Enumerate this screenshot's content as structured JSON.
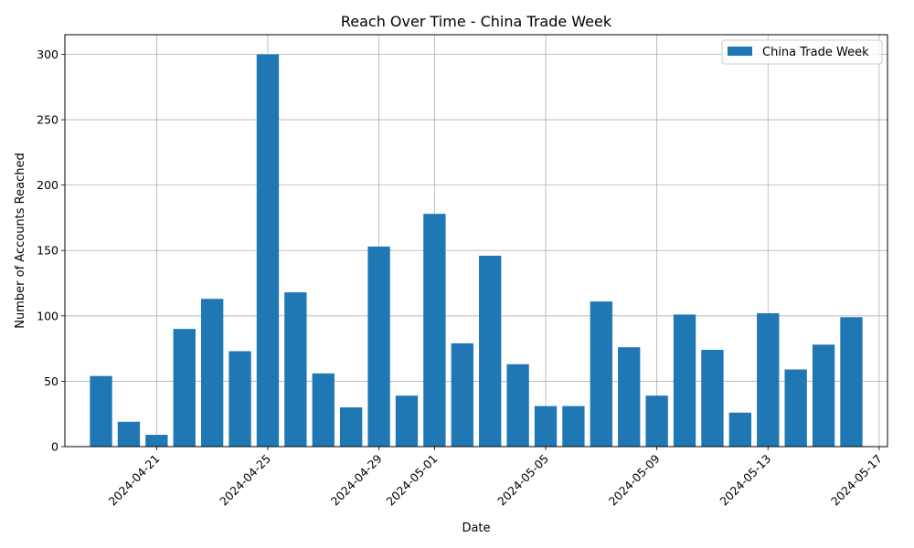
{
  "chart_data": {
    "type": "bar",
    "title": "Reach Over Time - China Trade Week",
    "xlabel": "Date",
    "ylabel": "Number of Accounts Reached",
    "ylim": [
      0,
      315
    ],
    "yticks": [
      0,
      50,
      100,
      150,
      200,
      250,
      300
    ],
    "xlim": [
      "2024-04-17T16:48",
      "2024-05-17T07:12"
    ],
    "xticks": [
      "2024-04-21",
      "2024-04-25",
      "2024-04-29",
      "2024-05-01",
      "2024-05-05",
      "2024-05-09",
      "2024-05-13",
      "2024-05-17"
    ],
    "grid": true,
    "legend_position": "top-right",
    "colors": {
      "bar": "#1f77b4"
    },
    "series": [
      {
        "name": "China Trade Week",
        "dates": [
          "2024-04-19",
          "2024-04-20",
          "2024-04-21",
          "2024-04-22",
          "2024-04-23",
          "2024-04-24",
          "2024-04-25",
          "2024-04-26",
          "2024-04-27",
          "2024-04-28",
          "2024-04-29",
          "2024-04-30",
          "2024-05-01",
          "2024-05-02",
          "2024-05-03",
          "2024-05-04",
          "2024-05-05",
          "2024-05-06",
          "2024-05-07",
          "2024-05-08",
          "2024-05-09",
          "2024-05-10",
          "2024-05-11",
          "2024-05-12",
          "2024-05-13",
          "2024-05-14",
          "2024-05-15",
          "2024-05-16"
        ],
        "values": [
          54,
          19,
          9,
          90,
          113,
          73,
          300,
          118,
          56,
          30,
          153,
          39,
          178,
          79,
          146,
          63,
          31,
          31,
          111,
          76,
          39,
          101,
          74,
          26,
          102,
          59,
          78,
          99
        ]
      }
    ]
  }
}
